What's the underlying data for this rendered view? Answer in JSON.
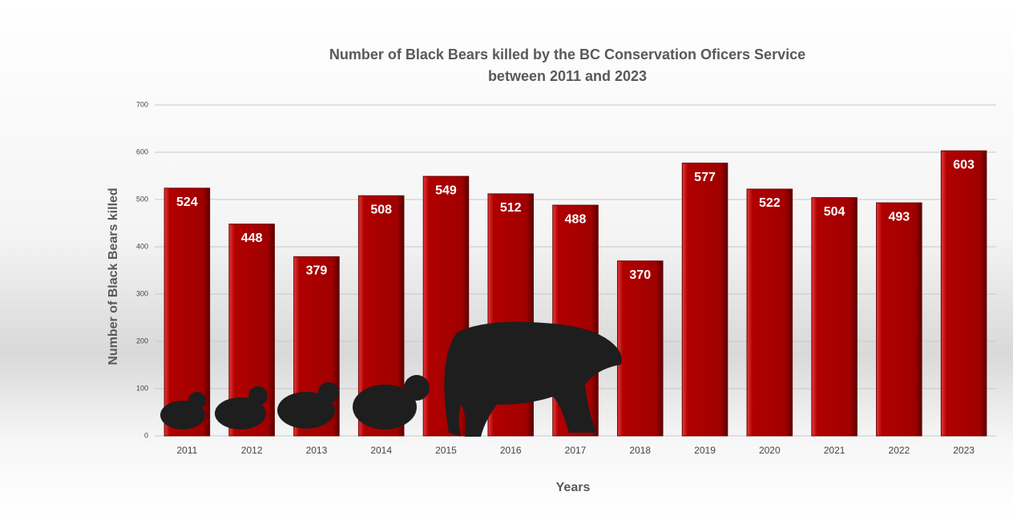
{
  "chart_data": {
    "type": "bar",
    "title": [
      "Number of Black Bears killed by the BC Conservation Oficers Service",
      "between 2011 and 2023"
    ],
    "x_label": "Years",
    "y_label": "Number of Black Bears killed",
    "categories": [
      "2011",
      "2012",
      "2013",
      "2014",
      "2015",
      "2016",
      "2017",
      "2018",
      "2019",
      "2020",
      "2021",
      "2022",
      "2023"
    ],
    "values": [
      524,
      448,
      379,
      508,
      549,
      512,
      488,
      370,
      577,
      522,
      504,
      493,
      603
    ],
    "color": "#b00000",
    "ylim": [
      0,
      700
    ],
    "yticks": [
      0,
      100,
      200,
      300,
      400,
      500,
      600,
      700
    ],
    "grid": true
  }
}
